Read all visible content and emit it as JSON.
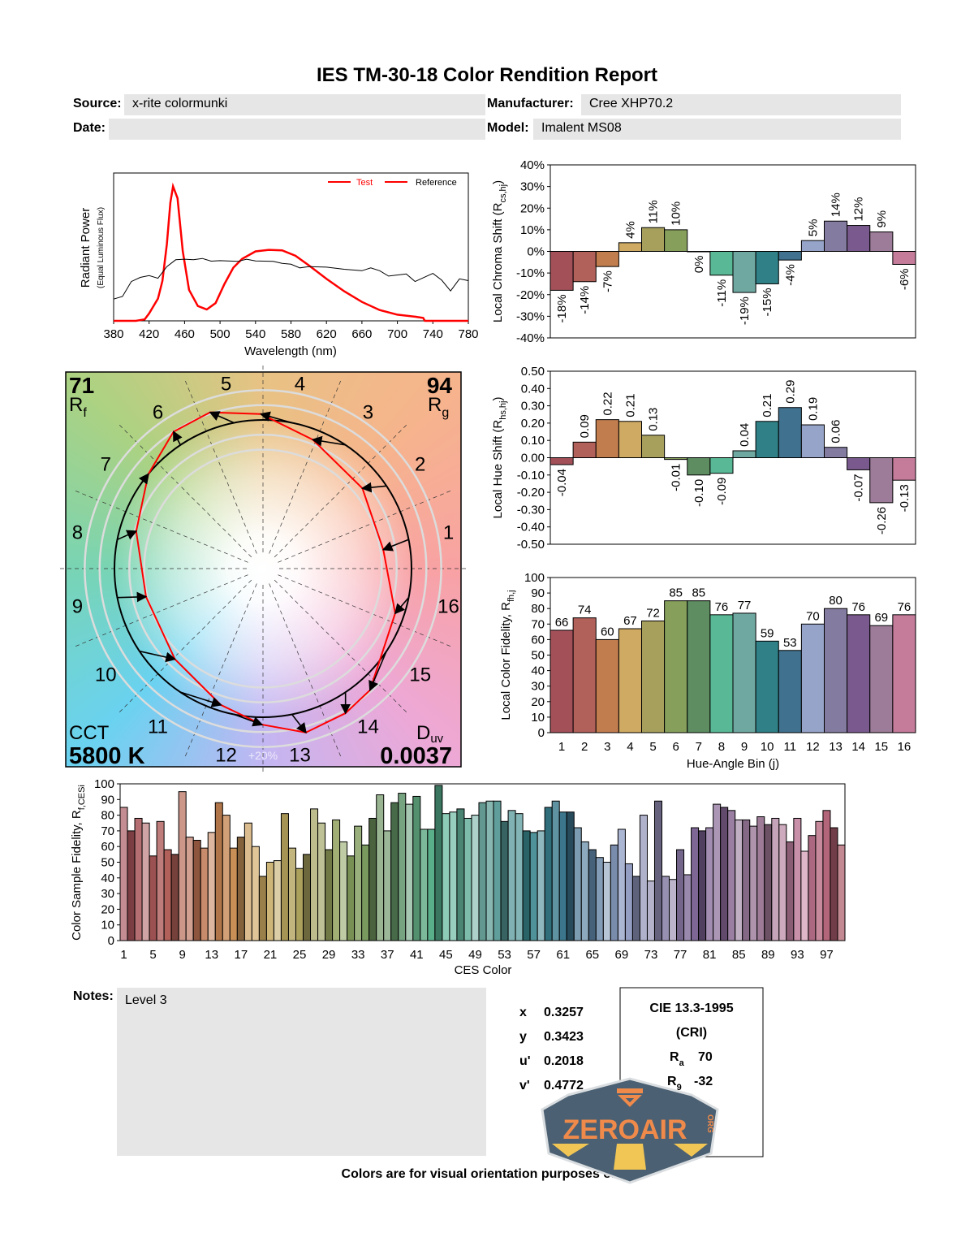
{
  "header": {
    "title": "IES TM-30-18 Color Rendition Report",
    "source_label": "Source:",
    "source_value": "x-rite colormunki",
    "manufacturer_label": "Manufacturer:",
    "manufacturer_value": "Cree XHP70.2",
    "date_label": "Date:",
    "date_value": "",
    "model_label": "Model:",
    "model_value": "Imalent MS08"
  },
  "colors": {
    "bins": [
      "#a35059",
      "#b1605a",
      "#c27d4f",
      "#cfaa62",
      "#a79f5c",
      "#86a05c",
      "#5e8d62",
      "#59b896",
      "#6fa8a1",
      "#2f8087",
      "#40718e",
      "#97a4c9",
      "#847ba0",
      "#7a5a8e",
      "#9c7c98",
      "#c57c9b"
    ],
    "test": "#ff0000",
    "reference": "#000000",
    "field_bg": "#e6e6e6"
  },
  "chart_data": [
    {
      "type": "line",
      "id": "spectrum",
      "xlabel": "Wavelength (nm)",
      "ylabel": "Radiant Power",
      "ylabel2": "(Equal Luminous Flux)",
      "xlim": [
        380,
        780
      ],
      "ylim": [
        0,
        1
      ],
      "xticks": [
        380,
        420,
        460,
        500,
        540,
        580,
        620,
        660,
        700,
        740,
        780
      ],
      "legend": {
        "position": "top-right",
        "entries": [
          "Test",
          "Reference"
        ]
      },
      "series": [
        {
          "name": "Test",
          "color": "#ff0000",
          "points": [
            [
              380,
              0
            ],
            [
              405,
              0
            ],
            [
              415,
              0.01
            ],
            [
              420,
              0.05
            ],
            [
              430,
              0.15
            ],
            [
              435,
              0.27
            ],
            [
              440,
              0.52
            ],
            [
              444,
              0.8
            ],
            [
              447,
              0.91
            ],
            [
              452,
              0.83
            ],
            [
              458,
              0.47
            ],
            [
              465,
              0.21
            ],
            [
              475,
              0.1
            ],
            [
              485,
              0.077
            ],
            [
              495,
              0.12
            ],
            [
              505,
              0.25
            ],
            [
              515,
              0.36
            ],
            [
              525,
              0.42
            ],
            [
              540,
              0.47
            ],
            [
              555,
              0.48
            ],
            [
              570,
              0.477
            ],
            [
              585,
              0.44
            ],
            [
              600,
              0.376
            ],
            [
              620,
              0.284
            ],
            [
              640,
              0.2
            ],
            [
              660,
              0.128
            ],
            [
              680,
              0.073
            ],
            [
              700,
              0.042
            ],
            [
              720,
              0.028
            ],
            [
              729,
              0.02
            ],
            [
              731,
              0
            ],
            [
              780,
              0
            ]
          ]
        },
        {
          "name": "Reference",
          "color": "#000000",
          "points": [
            [
              380,
              0.147
            ],
            [
              390,
              0.165
            ],
            [
              400,
              0.266
            ],
            [
              410,
              0.294
            ],
            [
              420,
              0.306
            ],
            [
              430,
              0.288
            ],
            [
              440,
              0.367
            ],
            [
              450,
              0.413
            ],
            [
              460,
              0.417
            ],
            [
              470,
              0.413
            ],
            [
              480,
              0.422
            ],
            [
              490,
              0.404
            ],
            [
              500,
              0.407
            ],
            [
              520,
              0.402
            ],
            [
              530,
              0.417
            ],
            [
              540,
              0.405
            ],
            [
              560,
              0.402
            ],
            [
              570,
              0.389
            ],
            [
              580,
              0.383
            ],
            [
              590,
              0.358
            ],
            [
              600,
              0.367
            ],
            [
              620,
              0.363
            ],
            [
              640,
              0.349
            ],
            [
              660,
              0.339
            ],
            [
              670,
              0.358
            ],
            [
              680,
              0.339
            ],
            [
              690,
              0.303
            ],
            [
              710,
              0.317
            ],
            [
              720,
              0.266
            ],
            [
              740,
              0.321
            ],
            [
              750,
              0.275
            ],
            [
              760,
              0.202
            ],
            [
              770,
              0.284
            ],
            [
              780,
              0.272
            ]
          ]
        }
      ]
    },
    {
      "type": "bar",
      "id": "chroma",
      "ylabel": [
        "Local Chroma Shift (R",
        "cs,hj",
        ")"
      ],
      "ylim": [
        -40,
        40
      ],
      "yticks": [
        -40,
        -30,
        -20,
        -10,
        0,
        10,
        20,
        30,
        40
      ],
      "unit": "%",
      "categories": [
        1,
        2,
        3,
        4,
        5,
        6,
        7,
        8,
        9,
        10,
        11,
        12,
        13,
        14,
        15,
        16
      ],
      "values": [
        -18,
        -14,
        -7,
        4,
        11,
        10,
        0,
        -11,
        -19,
        -15,
        -4,
        5,
        14,
        12,
        9,
        -6
      ],
      "labels": [
        "-18%",
        "-14%",
        "-7%",
        "4%",
        "11%",
        "10%",
        "0%",
        "-11%",
        "-19%",
        "-15%",
        "-4%",
        "5%",
        "14%",
        "12%",
        "9%",
        "-6%"
      ]
    },
    {
      "type": "bar",
      "id": "hue",
      "ylabel": [
        "Local Hue Shift (R",
        "hs,hj",
        ")"
      ],
      "ylim": [
        -0.5,
        0.5
      ],
      "yticks": [
        "-0.50",
        "-0.40",
        "-0.30",
        "-0.20",
        "-0.10",
        "0.00",
        "0.10",
        "0.20",
        "0.30",
        "0.40",
        "0.50"
      ],
      "categories": [
        1,
        2,
        3,
        4,
        5,
        6,
        7,
        8,
        9,
        10,
        11,
        12,
        13,
        14,
        15,
        16
      ],
      "values": [
        -0.04,
        0.09,
        0.22,
        0.21,
        0.13,
        -0.01,
        -0.1,
        -0.09,
        0.04,
        0.21,
        0.29,
        0.19,
        0.06,
        -0.07,
        -0.26,
        -0.13
      ],
      "labels": [
        "-0.04",
        "0.09",
        "0.22",
        "0.21",
        "0.13",
        "-0.01",
        "-0.10",
        "-0.09",
        "0.04",
        "0.21",
        "0.29",
        "0.19",
        "0.06",
        "-0.07",
        "-0.26",
        "-0.13"
      ]
    },
    {
      "type": "bar",
      "id": "fidelity",
      "xlabel": "Hue-Angle Bin (j)",
      "ylabel": [
        "Local Color Fidelity, R",
        "fh,j",
        ""
      ],
      "ylim": [
        0,
        100
      ],
      "yticks": [
        0,
        10,
        20,
        30,
        40,
        50,
        60,
        70,
        80,
        90,
        100
      ],
      "categories": [
        1,
        2,
        3,
        4,
        5,
        6,
        7,
        8,
        9,
        10,
        11,
        12,
        13,
        14,
        15,
        16
      ],
      "values": [
        66,
        74,
        60,
        67,
        72,
        85,
        85,
        76,
        77,
        59,
        53,
        70,
        80,
        76,
        69,
        76
      ]
    },
    {
      "type": "bar",
      "id": "ces",
      "xlabel": "CES Color",
      "ylabel": [
        "Color Sample Fidelity, R",
        "f,CESi",
        ""
      ],
      "ylim": [
        0,
        100
      ],
      "yticks": [
        0,
        10,
        20,
        30,
        40,
        50,
        60,
        70,
        80,
        90,
        100
      ],
      "xticks": [
        1,
        5,
        9,
        13,
        17,
        21,
        25,
        29,
        33,
        37,
        41,
        45,
        49,
        53,
        57,
        61,
        65,
        69,
        73,
        77,
        81,
        85,
        89,
        93,
        97
      ],
      "values": [
        85,
        70,
        78,
        75,
        54,
        76,
        58,
        55,
        95,
        66,
        64,
        59,
        69,
        88,
        80,
        59,
        66,
        75,
        60,
        41,
        50,
        51,
        81,
        59,
        46,
        55,
        84,
        75,
        58,
        77,
        63,
        54,
        73,
        61,
        78,
        93,
        70,
        88,
        94,
        87,
        92,
        71,
        71,
        99,
        81,
        82,
        84,
        78,
        80,
        88,
        89,
        89,
        76,
        83,
        81,
        70,
        69,
        70,
        85,
        89,
        82,
        82,
        72,
        63,
        58,
        53,
        50,
        61,
        71,
        49,
        41,
        80,
        38,
        89,
        41,
        39,
        58,
        42,
        72,
        70,
        72,
        87,
        85,
        83,
        77,
        77,
        73,
        79,
        74,
        78,
        74,
        63,
        78,
        57,
        67,
        76,
        83,
        72,
        61
      ]
    },
    {
      "type": "vector",
      "id": "color-vector-graphic",
      "bin_labels": [
        "1",
        "2",
        "3",
        "4",
        "5",
        "6",
        "7",
        "8",
        "9",
        "10",
        "11",
        "12",
        "13",
        "14",
        "15",
        "16"
      ],
      "scale_label": "+20%"
    }
  ],
  "vector": {
    "rf_value": "71",
    "rf_main": "R",
    "rf_sub": "f",
    "rg_value": "94",
    "rg_main": "R",
    "rg_sub": "g",
    "cct_label": "CCT",
    "cct_value": "5800 K",
    "duv_main": "D",
    "duv_sub": "uv",
    "duv_value": "0.0037"
  },
  "notes": {
    "label": "Notes:",
    "value": "Level 3"
  },
  "chromaticity": [
    {
      "label": "x",
      "value": "0.3257"
    },
    {
      "label": "y",
      "value": "0.3423"
    },
    {
      "label": "u'",
      "value": "0.2018"
    },
    {
      "label": "v'",
      "value": "0.4772"
    }
  ],
  "cri": {
    "title": "CIE 13.3-1995",
    "subtitle": "(CRI)",
    "ra_main": "R",
    "ra_sub": "a",
    "ra_value": "70",
    "r9_main": "R",
    "r9_sub": "9",
    "r9_value": "-32"
  },
  "footer": "Colors are for visual orientation purposes only.",
  "logo": {
    "text": "ZEROAIR",
    "suffix": "ORG"
  }
}
